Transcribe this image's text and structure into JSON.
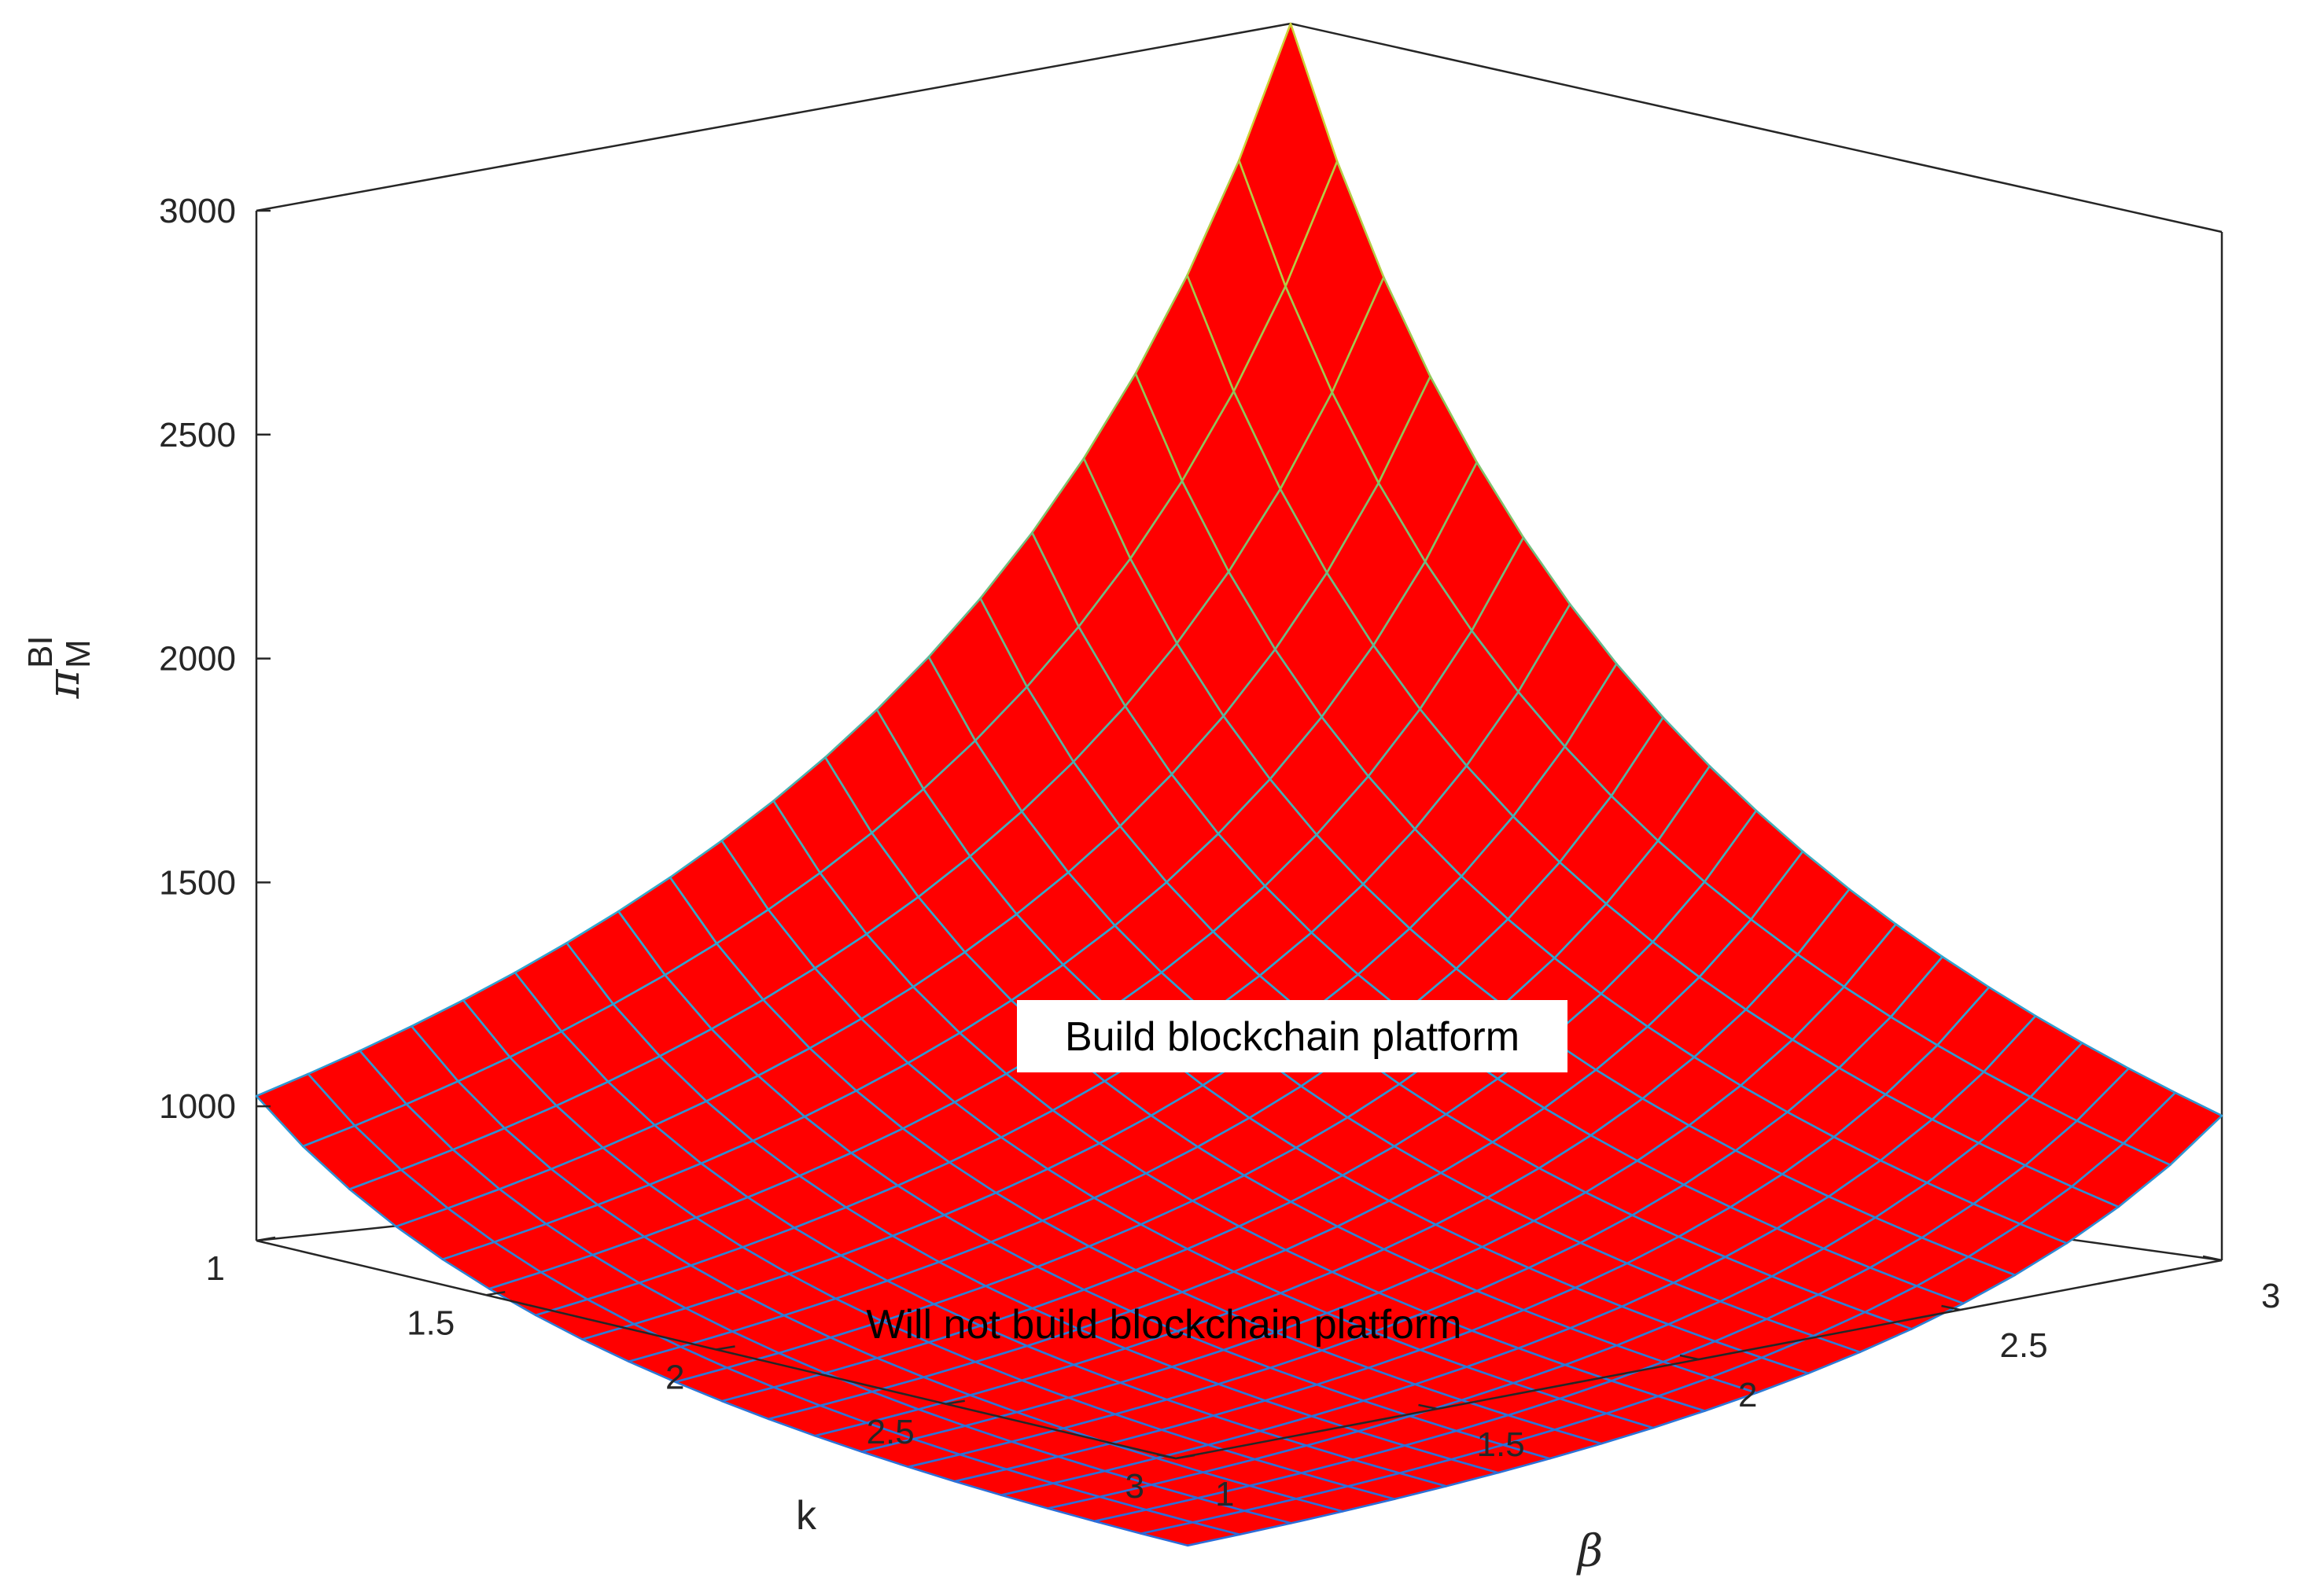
{
  "chart_data": {
    "type": "surface",
    "x_axis": {
      "label": "k",
      "ticks": [
        "1",
        "1.5",
        "2",
        "2.5",
        "3"
      ],
      "range": [
        1,
        3
      ]
    },
    "y_axis": {
      "label": "β",
      "ticks": [
        "1",
        "1.5",
        "2",
        "2.5",
        "3"
      ],
      "range": [
        1,
        3
      ]
    },
    "z_axis": {
      "label_main": "π",
      "label_sup": "BI",
      "label_sub": "M",
      "ticks": [
        "1000",
        "1500",
        "2000",
        "2500",
        "3000"
      ],
      "range": [
        700,
        3000
      ]
    },
    "surface": {
      "grid_size": 21,
      "model": "z = 3000 / (k * beta)",
      "corner_values": {
        "k1_b1": 3000,
        "k3_b1": 1000,
        "k1_b3": 1000,
        "k3_b3": 333
      },
      "face_color": "#ff0000",
      "edge_colormap": [
        "#2c6bd8",
        "#2fa9d0",
        "#8dc65a",
        "#e8d52a"
      ]
    },
    "annotations": [
      {
        "text": "Build blockchain platform",
        "boxed": true
      },
      {
        "text": "Will not build blockchain platform",
        "boxed": false
      }
    ],
    "grid": false
  }
}
